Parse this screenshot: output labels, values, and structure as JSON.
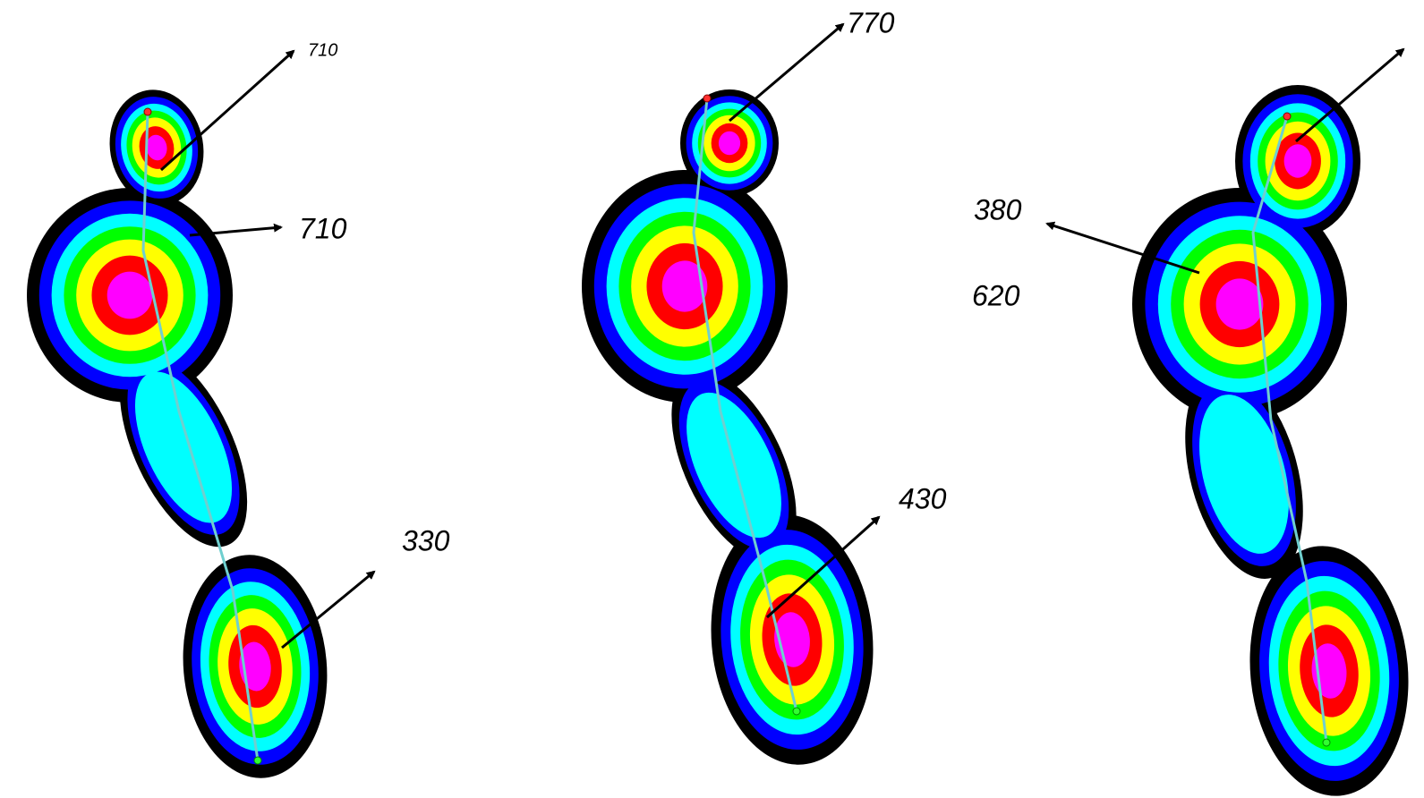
{
  "annotations": [
    "710",
    "710",
    "330",
    "770",
    "430",
    "380",
    "620"
  ]
}
